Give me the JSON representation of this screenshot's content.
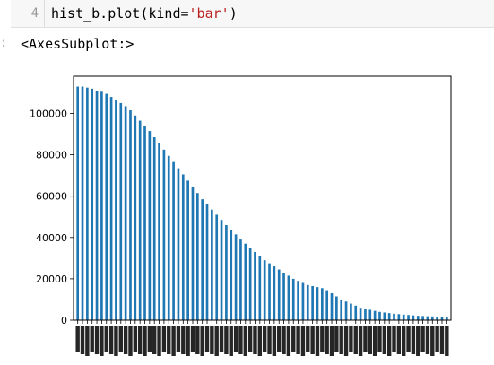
{
  "cell": {
    "line_number": "4",
    "code_prefix": "hist_b.plot(kind=",
    "code_string": "'bar'",
    "code_suffix": ")",
    "output_marker": ":",
    "output_repr": "<AxesSubplot:>"
  },
  "chart_data": {
    "type": "bar",
    "bar_color": "#1f77b4",
    "ylim": [
      0,
      118000
    ],
    "yticks": [
      0,
      20000,
      40000,
      60000,
      80000,
      100000
    ],
    "ytick_labels": [
      "0",
      "20000",
      "40000",
      "60000",
      "80000",
      "100000"
    ],
    "values": [
      113000,
      113000,
      112500,
      112000,
      111000,
      110500,
      109500,
      108000,
      106500,
      105000,
      103500,
      101500,
      99000,
      96500,
      94000,
      91500,
      88500,
      85500,
      82500,
      79500,
      76500,
      73500,
      70500,
      67500,
      64500,
      61500,
      58500,
      56000,
      53500,
      51000,
      48500,
      46000,
      43500,
      41500,
      39000,
      37000,
      35000,
      33000,
      31000,
      29000,
      27500,
      26000,
      24500,
      23000,
      21500,
      20000,
      19000,
      18000,
      17000,
      16500,
      16000,
      15500,
      14500,
      13000,
      11500,
      10000,
      9000,
      8000,
      7000,
      6000,
      5500,
      5000,
      4500,
      4000,
      3700,
      3400,
      3100,
      2900,
      2700,
      2500,
      2300,
      2100,
      2000,
      1900,
      1800,
      1700,
      1600,
      1500
    ]
  }
}
